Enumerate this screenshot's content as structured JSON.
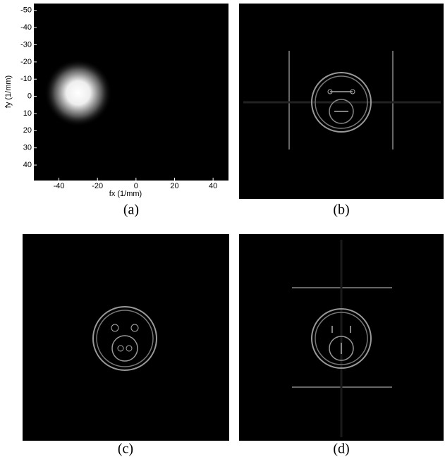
{
  "panels": [
    {
      "caption": "(a)",
      "xlabel": "fx (1/mm)",
      "ylabel": "fy (1/mm)",
      "xlim": [
        -53,
        48
      ],
      "ylim": [
        -54,
        49
      ],
      "xticks": [
        -40,
        -20,
        0,
        20,
        40
      ],
      "yticks": [
        -50,
        -40,
        -30,
        -20,
        -10,
        0,
        10,
        20,
        30,
        40
      ],
      "spot_center": [
        -30,
        -2
      ]
    },
    {
      "caption": "(b)"
    },
    {
      "caption": "(c)"
    },
    {
      "caption": "(d)"
    }
  ]
}
